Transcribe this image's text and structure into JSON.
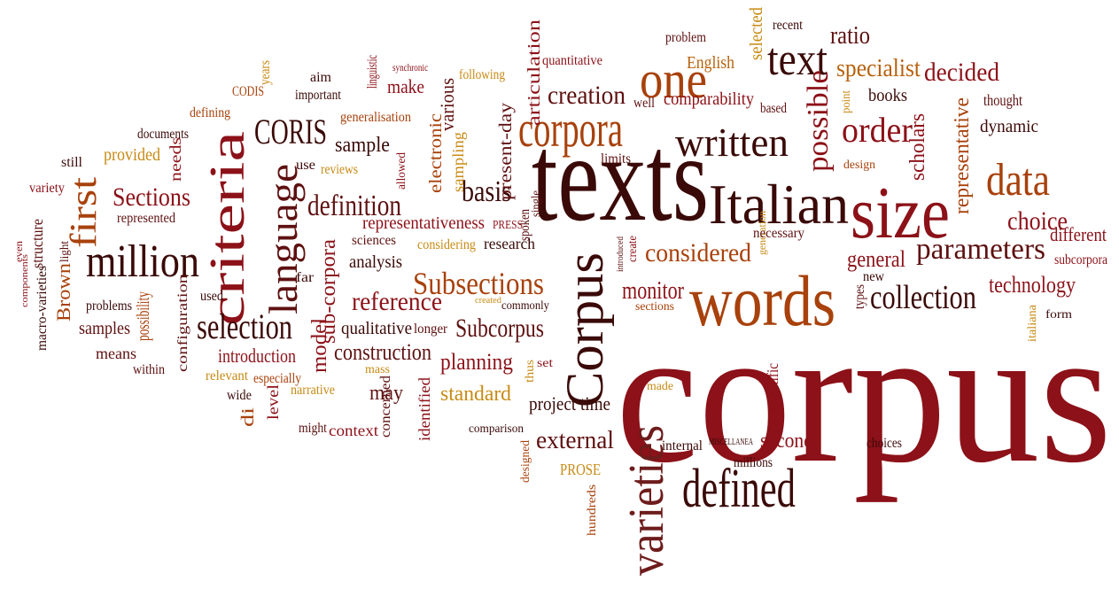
{
  "palette": {
    "darkest": "#3a0a08",
    "dark": "#5e1010",
    "crimson": "#8c1118",
    "maroon": "#6e1c1c",
    "rust": "#a8410b",
    "orange": "#b8620e",
    "gold": "#c88a14",
    "brown": "#7a2a14"
  },
  "words": [
    {
      "text": "corpus",
      "color": "#8c1118"
    },
    {
      "text": "texts",
      "color": "#3a0a08"
    },
    {
      "text": "words",
      "color": "#a8410b"
    },
    {
      "text": "size",
      "color": "#8c1118"
    },
    {
      "text": "Italian",
      "color": "#3a0a08"
    },
    {
      "text": "corpora",
      "color": "#a8410b"
    },
    {
      "text": "defined",
      "color": "#3a0a08"
    },
    {
      "text": "varieties",
      "color": "#6e1c1c"
    },
    {
      "text": "Corpus",
      "color": "#3a0a08"
    },
    {
      "text": "one",
      "color": "#a8410b"
    },
    {
      "text": "criteria",
      "color": "#8c1118"
    },
    {
      "text": "million",
      "color": "#3a0a08"
    },
    {
      "text": "language",
      "color": "#5e1010"
    },
    {
      "text": "first",
      "color": "#a8410b"
    },
    {
      "text": "written",
      "color": "#3a0a08"
    },
    {
      "text": "text",
      "color": "#3a0a08"
    },
    {
      "text": "data",
      "color": "#a8410b"
    },
    {
      "text": "CORIS",
      "color": "#3a0a08"
    },
    {
      "text": "selection",
      "color": "#3a0a08"
    },
    {
      "text": "collection",
      "color": "#3a0a08"
    },
    {
      "text": "Subsections",
      "color": "#a8410b"
    },
    {
      "text": "parameters",
      "color": "#5e1010"
    },
    {
      "text": "order",
      "color": "#8c1118"
    },
    {
      "text": "possible",
      "color": "#8c1118"
    },
    {
      "text": "definition",
      "color": "#5e1010"
    },
    {
      "text": "choice",
      "color": "#8c1118"
    },
    {
      "text": "creation",
      "color": "#5e1010"
    },
    {
      "text": "considered",
      "color": "#a8410b"
    },
    {
      "text": "Subcorpus",
      "color": "#5e1010"
    },
    {
      "text": "reference",
      "color": "#8c1118"
    },
    {
      "text": "basis",
      "color": "#3a0a08"
    },
    {
      "text": "decided",
      "color": "#8c1118"
    },
    {
      "text": "specialist",
      "color": "#b8620e"
    },
    {
      "text": "external",
      "color": "#5e1010"
    },
    {
      "text": "Sections",
      "color": "#8c1118"
    },
    {
      "text": "monitor",
      "color": "#8c1118"
    },
    {
      "text": "technology",
      "color": "#8c1118"
    },
    {
      "text": "general",
      "color": "#8c1118"
    },
    {
      "text": "construction",
      "color": "#5e1010"
    },
    {
      "text": "planning",
      "color": "#8c1118"
    },
    {
      "text": "standard",
      "color": "#c88a14"
    },
    {
      "text": "sub-corpora",
      "color": "#8c1118"
    },
    {
      "text": "ratio",
      "color": "#5e1010"
    },
    {
      "text": "scholars",
      "color": "#8c1118"
    },
    {
      "text": "representative",
      "color": "#a8410b"
    },
    {
      "text": "different",
      "color": "#8c1118"
    },
    {
      "text": "model",
      "color": "#8c1118"
    },
    {
      "text": "sample",
      "color": "#3a0a08"
    },
    {
      "text": "second",
      "color": "#8c1118"
    },
    {
      "text": "may",
      "color": "#5e1010"
    },
    {
      "text": "project time",
      "color": "#3a0a08"
    },
    {
      "text": "introduction",
      "color": "#8c1118"
    },
    {
      "text": "qualitative",
      "color": "#3a0a08"
    },
    {
      "text": "analysis",
      "color": "#3a0a08"
    },
    {
      "text": "representativeness",
      "color": "#8c1118"
    },
    {
      "text": "electronic",
      "color": "#a8410b"
    },
    {
      "text": "present-day",
      "color": "#5e1010"
    },
    {
      "text": "articulation",
      "color": "#8c1118"
    },
    {
      "text": "various",
      "color": "#5e1010"
    },
    {
      "text": "make",
      "color": "#8c1118"
    },
    {
      "text": "English",
      "color": "#b8620e"
    },
    {
      "text": "selected",
      "color": "#c88a14"
    },
    {
      "text": "comparability",
      "color": "#8c1118"
    },
    {
      "text": "books",
      "color": "#3a0a08"
    },
    {
      "text": "dynamic",
      "color": "#3a0a08"
    },
    {
      "text": "thought",
      "color": "#5e1010"
    },
    {
      "text": "recent",
      "color": "#3a0a08"
    },
    {
      "text": "problem",
      "color": "#5e1010"
    },
    {
      "text": "quantitative",
      "color": "#8c1118"
    },
    {
      "text": "following",
      "color": "#c88a14"
    },
    {
      "text": "synchronic",
      "color": "#8c1118"
    },
    {
      "text": "linguistic",
      "color": "#8c1118"
    },
    {
      "text": "aim",
      "color": "#3a0a08"
    },
    {
      "text": "important",
      "color": "#3a0a08"
    },
    {
      "text": "years",
      "color": "#c88a14"
    },
    {
      "text": "CODIS",
      "color": "#a8410b"
    },
    {
      "text": "defining",
      "color": "#a8410b"
    },
    {
      "text": "documents",
      "color": "#3a0a08"
    },
    {
      "text": "generalisation",
      "color": "#a8410b"
    },
    {
      "text": "well",
      "color": "#5e1010"
    },
    {
      "text": "based",
      "color": "#5e1010"
    },
    {
      "text": "point",
      "color": "#c88a14"
    },
    {
      "text": "provided",
      "color": "#c88a14"
    },
    {
      "text": "needs",
      "color": "#8c1118"
    },
    {
      "text": "use",
      "color": "#3a0a08"
    },
    {
      "text": "reviews",
      "color": "#c88a14"
    },
    {
      "text": "allowed",
      "color": "#8c1118"
    },
    {
      "text": "sampling",
      "color": "#c88a14"
    },
    {
      "text": "limits",
      "color": "#5e1010"
    },
    {
      "text": "design",
      "color": "#a8410b"
    },
    {
      "text": "still",
      "color": "#3a0a08"
    },
    {
      "text": "variety",
      "color": "#8c1118"
    },
    {
      "text": "represented",
      "color": "#5e1010"
    },
    {
      "text": "spoken",
      "color": "#5e1010"
    },
    {
      "text": "single",
      "color": "#5e1010"
    },
    {
      "text": "PRESS",
      "color": "#8c1118"
    },
    {
      "text": "generation",
      "color": "#c88a14"
    },
    {
      "text": "necessary",
      "color": "#5e1010"
    },
    {
      "text": "subcorpora",
      "color": "#8c1118"
    },
    {
      "text": "sciences",
      "color": "#5e1010"
    },
    {
      "text": "considering",
      "color": "#c88a14"
    },
    {
      "text": "research",
      "color": "#3a0a08"
    },
    {
      "text": "introduced",
      "color": "#5e1010"
    },
    {
      "text": "create",
      "color": "#8c1118"
    },
    {
      "text": "new",
      "color": "#3a0a08"
    },
    {
      "text": "types",
      "color": "#5e1010"
    },
    {
      "text": "far",
      "color": "#3a0a08"
    },
    {
      "text": "used",
      "color": "#3a0a08"
    },
    {
      "text": "components",
      "color": "#8c1118"
    },
    {
      "text": "even",
      "color": "#8c1118"
    },
    {
      "text": "structure",
      "color": "#5e1010"
    },
    {
      "text": "Brown",
      "color": "#a8410b"
    },
    {
      "text": "light",
      "color": "#5e1010"
    },
    {
      "text": "macro-varieties",
      "color": "#3a0a08"
    },
    {
      "text": "problems",
      "color": "#3a0a08"
    },
    {
      "text": "possibility",
      "color": "#a8410b"
    },
    {
      "text": "configuration",
      "color": "#5e1010"
    },
    {
      "text": "samples",
      "color": "#5e1010"
    },
    {
      "text": "means",
      "color": "#5e1010"
    },
    {
      "text": "within",
      "color": "#5e1010"
    },
    {
      "text": "relevant",
      "color": "#c88a14"
    },
    {
      "text": "especially",
      "color": "#a8410b"
    },
    {
      "text": "mass",
      "color": "#c88a14"
    },
    {
      "text": "longer",
      "color": "#5e1010"
    },
    {
      "text": "created",
      "color": "#c88a14"
    },
    {
      "text": "commonly",
      "color": "#3a0a08"
    },
    {
      "text": "sections",
      "color": "#a8410b"
    },
    {
      "text": "italiana",
      "color": "#c88a14"
    },
    {
      "text": "form",
      "color": "#3a0a08"
    },
    {
      "text": "set",
      "color": "#8c1118"
    },
    {
      "text": "thus",
      "color": "#c88a14"
    },
    {
      "text": "made",
      "color": "#c88a14"
    },
    {
      "text": "scientific",
      "color": "#8c1118"
    },
    {
      "text": "wide",
      "color": "#3a0a08"
    },
    {
      "text": "di",
      "color": "#a8410b"
    },
    {
      "text": "level",
      "color": "#8c1118"
    },
    {
      "text": "narrative",
      "color": "#c88a14"
    },
    {
      "text": "concerned",
      "color": "#5e1010"
    },
    {
      "text": "identified",
      "color": "#8c1118"
    },
    {
      "text": "might",
      "color": "#5e1010"
    },
    {
      "text": "context",
      "color": "#8c1118"
    },
    {
      "text": "comparison",
      "color": "#3a0a08"
    },
    {
      "text": "designed",
      "color": "#a8410b"
    },
    {
      "text": "PROSE",
      "color": "#c88a14"
    },
    {
      "text": "hundreds",
      "color": "#a8410b"
    },
    {
      "text": "internal",
      "color": "#3a0a08"
    },
    {
      "text": "MISCELLANEA",
      "color": "#3a0a08"
    },
    {
      "text": "millions",
      "color": "#3a0a08"
    },
    {
      "text": "choices",
      "color": "#3a0a08"
    }
  ]
}
